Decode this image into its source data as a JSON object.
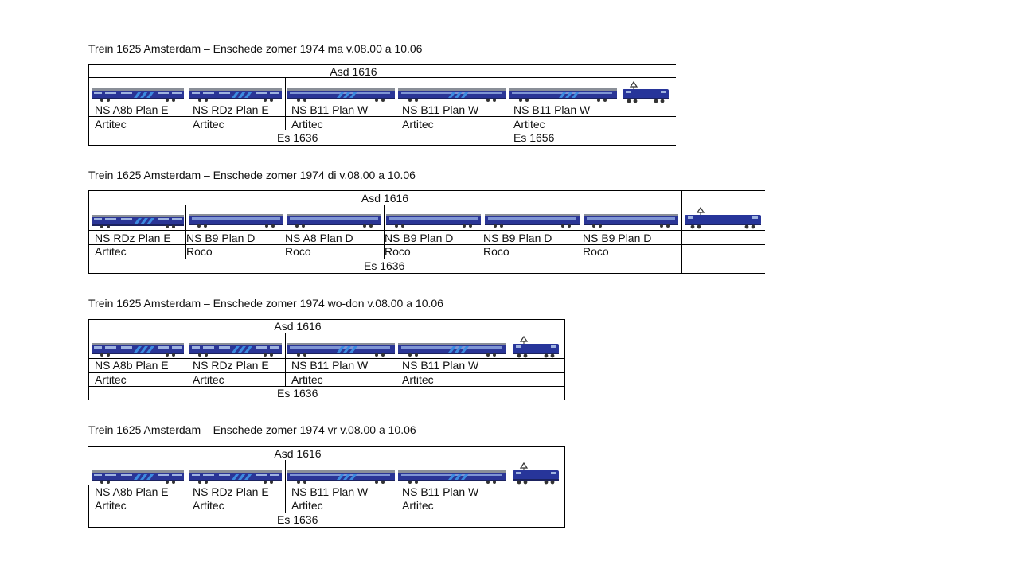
{
  "colors": {
    "coach_body": "#2a3596",
    "coach_roof": "#8a8f98",
    "stripe": "#3d8be0",
    "loco": "#27359a"
  },
  "trains": [
    {
      "title": "Trein 1625 Amsterdam – Enschede zomer 1974 ma v.08.00 a 10.06",
      "top_label": "Asd 1616",
      "bottom_labels": [
        "Es 1636",
        "Es 1656"
      ],
      "cars": [
        {
          "name": "NS A8b Plan E",
          "maker": "Artitec",
          "icon": "coach-plan-e-icon"
        },
        {
          "name": "NS RDz Plan E",
          "maker": "Artitec",
          "icon": "coach-plan-e-icon"
        },
        {
          "name": "NS B11 Plan W",
          "maker": "Artitec",
          "icon": "coach-plan-w-icon"
        },
        {
          "name": "NS B11 Plan W",
          "maker": "Artitec",
          "icon": "coach-plan-w-icon"
        },
        {
          "name": "NS B11 Plan W",
          "maker": "Artitec",
          "icon": "coach-plan-w-icon"
        }
      ],
      "loco_icon": "electric-locomotive-icon"
    },
    {
      "title": "Trein 1625 Amsterdam – Enschede zomer 1974 di v.08.00 a 10.06",
      "top_label": "Asd 1616",
      "bottom_labels": [
        "Es 1636"
      ],
      "cars": [
        {
          "name": "NS RDz Plan E",
          "maker": "Artitec",
          "icon": "coach-plan-e-icon"
        },
        {
          "name": "NS B9 Plan D",
          "maker": "Roco",
          "icon": "coach-plan-d-icon"
        },
        {
          "name": "NS A8 Plan D",
          "maker": "Roco",
          "icon": "coach-plan-d-icon"
        },
        {
          "name": "NS B9 Plan D",
          "maker": "Roco",
          "icon": "coach-plan-d-icon"
        },
        {
          "name": "NS B9 Plan D",
          "maker": "Roco",
          "icon": "coach-plan-d-icon"
        },
        {
          "name": "NS B9 Plan D",
          "maker": "Roco",
          "icon": "coach-plan-d-icon"
        }
      ],
      "loco_icon": "electric-locomotive-icon"
    },
    {
      "title": "Trein 1625 Amsterdam – Enschede zomer 1974 wo-don v.08.00 a 10.06",
      "top_label": "Asd 1616",
      "bottom_labels": [
        "Es 1636"
      ],
      "cars": [
        {
          "name": "NS A8b Plan E",
          "maker": "Artitec",
          "icon": "coach-plan-e-icon"
        },
        {
          "name": "NS RDz Plan E",
          "maker": "Artitec",
          "icon": "coach-plan-e-icon"
        },
        {
          "name": "NS B11 Plan W",
          "maker": "Artitec",
          "icon": "coach-plan-w-icon"
        },
        {
          "name": "NS B11 Plan W",
          "maker": "Artitec",
          "icon": "coach-plan-w-icon"
        }
      ],
      "loco_icon": "electric-locomotive-icon"
    },
    {
      "title": "Trein 1625 Amsterdam – Enschede zomer 1974 vr v.08.00 a 10.06",
      "top_label": "Asd 1616",
      "bottom_labels": [
        "Es 1636"
      ],
      "cars": [
        {
          "name": "NS A8b Plan E",
          "maker": "Artitec",
          "icon": "coach-plan-e-icon"
        },
        {
          "name": "NS RDz Plan E",
          "maker": "Artitec",
          "icon": "coach-plan-e-icon"
        },
        {
          "name": "NS B11 Plan W",
          "maker": "Artitec",
          "icon": "coach-plan-w-icon"
        },
        {
          "name": "NS B11 Plan W",
          "maker": "Artitec",
          "icon": "coach-plan-w-icon"
        }
      ],
      "loco_icon": "electric-locomotive-icon"
    }
  ]
}
